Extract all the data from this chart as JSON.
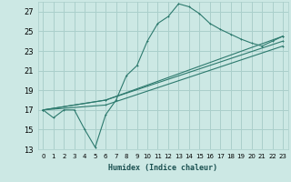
{
  "title": "",
  "xlabel": "Humidex (Indice chaleur)",
  "ylabel": "",
  "background_color": "#cce8e4",
  "grid_color": "#aacfcb",
  "line_color": "#2d7a6e",
  "xlim": [
    -0.5,
    23.5
  ],
  "ylim": [
    13,
    28
  ],
  "yticks": [
    13,
    15,
    17,
    19,
    21,
    23,
    25,
    27
  ],
  "xticks": [
    0,
    1,
    2,
    3,
    4,
    5,
    6,
    7,
    8,
    9,
    10,
    11,
    12,
    13,
    14,
    15,
    16,
    17,
    18,
    19,
    20,
    21,
    22,
    23
  ],
  "lines": [
    {
      "x": [
        0,
        1,
        2,
        3,
        4,
        5,
        6,
        7,
        8,
        9,
        10,
        11,
        12,
        13,
        14,
        15,
        16,
        17,
        18,
        19,
        20,
        21,
        22,
        23
      ],
      "y": [
        17,
        16.2,
        17,
        17,
        15,
        13.2,
        16.5,
        18,
        20.5,
        21.5,
        24,
        25.8,
        26.5,
        27.8,
        27.5,
        26.8,
        25.8,
        25.2,
        24.7,
        24.2,
        23.8,
        23.5,
        24,
        24.5
      ]
    },
    {
      "x": [
        0,
        6,
        23
      ],
      "y": [
        17,
        18,
        24.5
      ]
    },
    {
      "x": [
        0,
        6,
        23
      ],
      "y": [
        17,
        18,
        24.0
      ]
    },
    {
      "x": [
        0,
        6,
        23
      ],
      "y": [
        17,
        17.5,
        23.5
      ]
    }
  ]
}
